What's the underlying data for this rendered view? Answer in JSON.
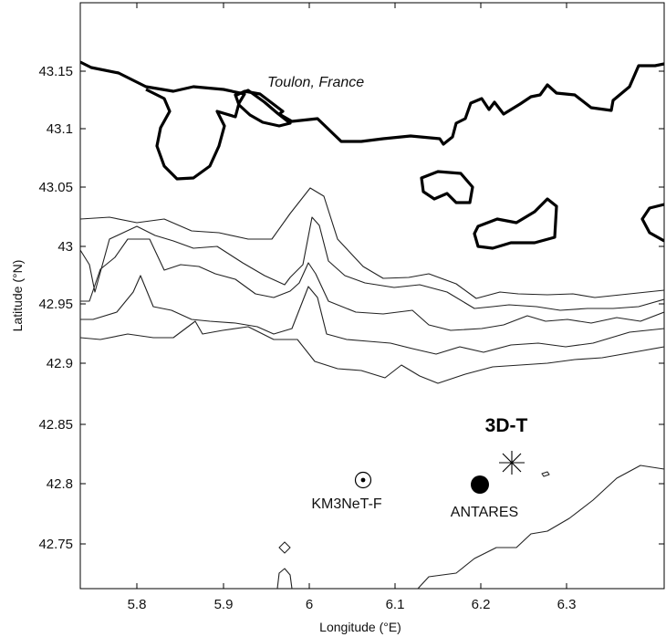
{
  "map": {
    "place_label": "Toulon, France",
    "xlabel": "Longitude (°E)",
    "ylabel": "Latitude (°N)",
    "x_ticks": [
      "5.8",
      "5.9",
      "6",
      "6.1",
      "6.2",
      "6.3"
    ],
    "y_ticks": [
      "43.15",
      "43.1",
      "43.05",
      "43",
      "42.95",
      "42.9",
      "42.85",
      "42.8",
      "42.75"
    ],
    "sites": [
      {
        "name": "KM3NeT-F",
        "lon": 6.033,
        "lat": 42.803,
        "marker": "circle-dot-icon"
      },
      {
        "name": "ANTARES",
        "lon": 6.166,
        "lat": 42.8,
        "marker": "filled-circle-icon"
      },
      {
        "name": "3D-T",
        "lon": 6.196,
        "lat": 42.825,
        "marker": "asterisk-icon"
      }
    ]
  }
}
